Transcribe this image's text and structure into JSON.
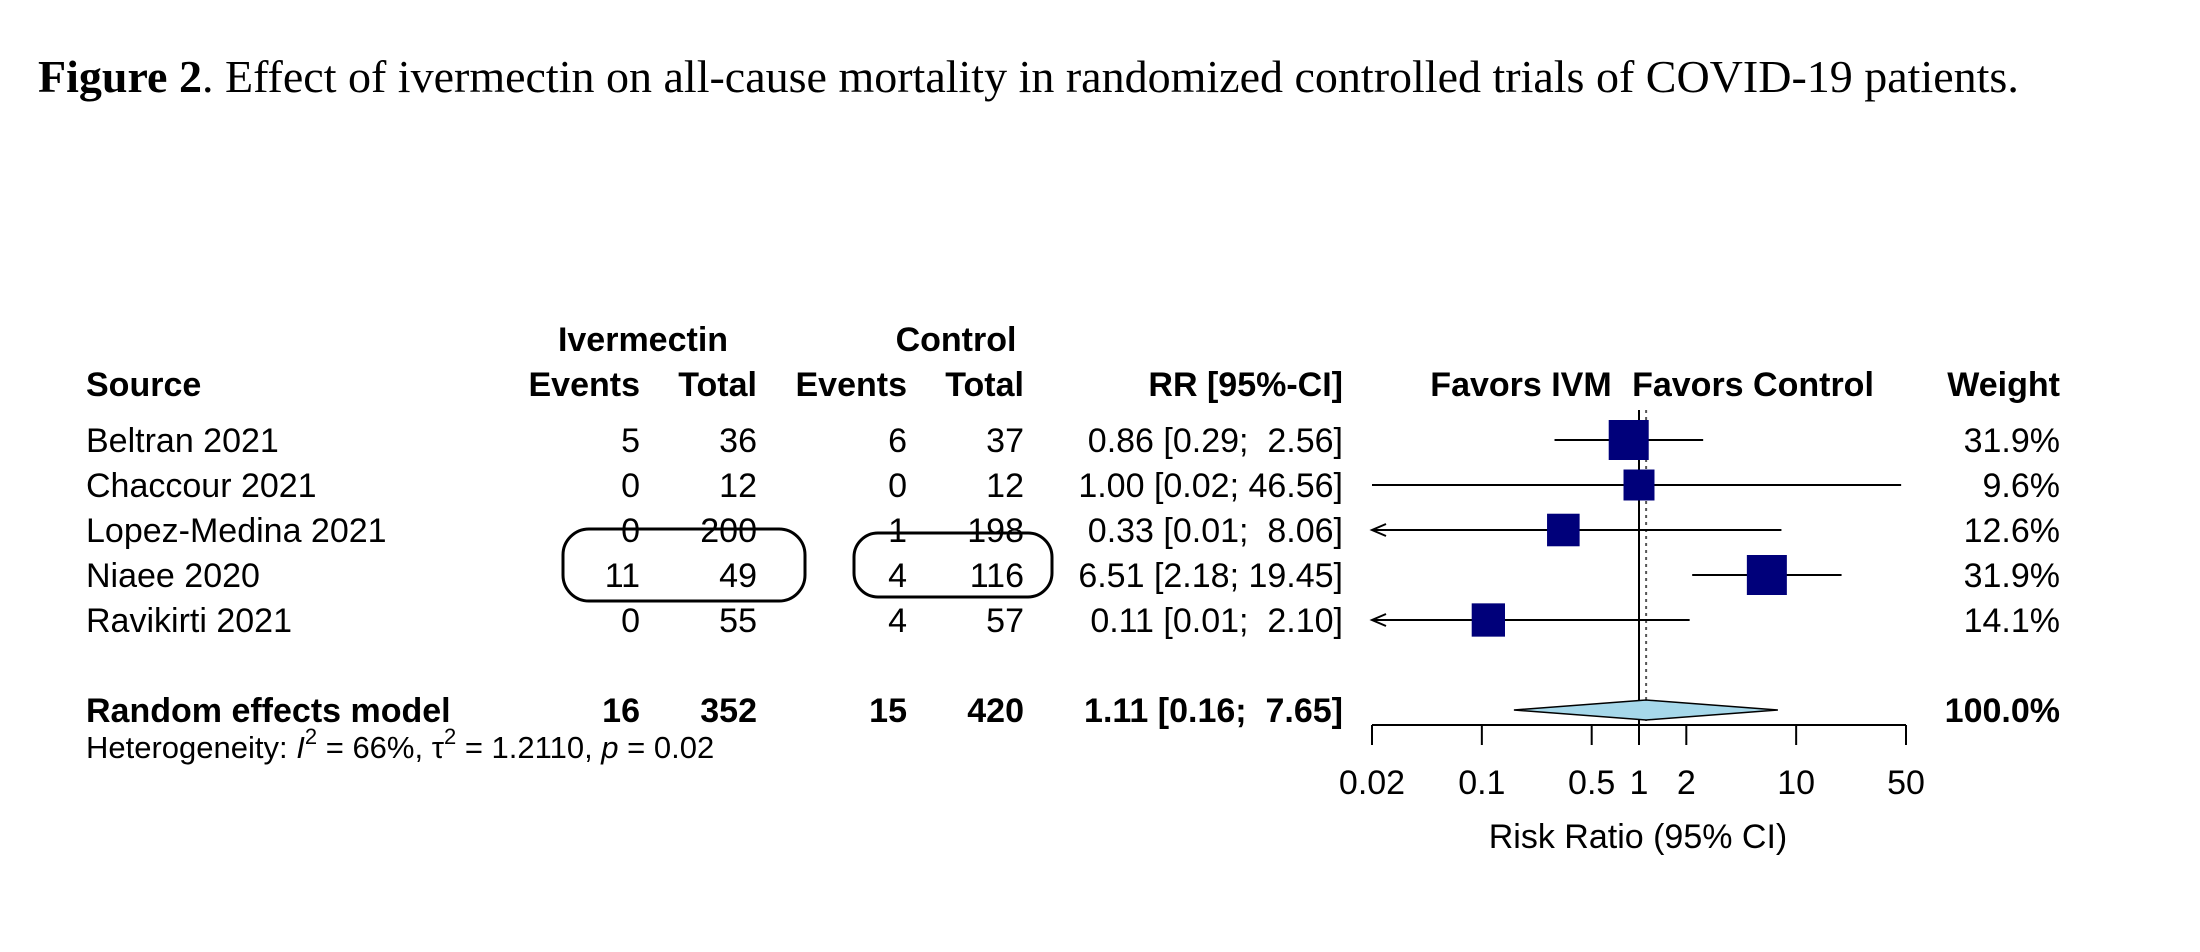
{
  "caption": {
    "label": "Figure 2",
    "text": ". Effect of ivermectin on all-cause mortality in randomized controlled trials of COVID-19 patients."
  },
  "chart_data": {
    "type": "forest",
    "headers": {
      "ivermectin": "Ivermectin",
      "control": "Control",
      "source": "Source",
      "events": "Events",
      "total": "Total",
      "rr": "RR [95%-CI]",
      "favors_ivm": "Favors IVM",
      "favors_control": "Favors Control",
      "weight": "Weight"
    },
    "studies": [
      {
        "source": "Beltran 2021",
        "ivm_events": "5",
        "ivm_total": "36",
        "ctl_events": "6",
        "ctl_total": "37",
        "rr_text": "0.86 [0.29;  2.56]",
        "rr": 0.86,
        "lo": 0.29,
        "hi": 2.56,
        "arrow_lo": false,
        "arrow_hi": false,
        "weight": "31.9%",
        "w": 31.9
      },
      {
        "source": "Chaccour 2021",
        "ivm_events": "0",
        "ivm_total": "12",
        "ctl_events": "0",
        "ctl_total": "12",
        "rr_text": "1.00 [0.02; 46.56]",
        "rr": 1.0,
        "lo": 0.02,
        "hi": 46.56,
        "arrow_lo": false,
        "arrow_hi": false,
        "weight": "9.6%",
        "w": 9.6
      },
      {
        "source": "Lopez-Medina 2021",
        "ivm_events": "0",
        "ivm_total": "200",
        "ctl_events": "1",
        "ctl_total": "198",
        "rr_text": "0.33 [0.01;  8.06]",
        "rr": 0.33,
        "lo": 0.01,
        "hi": 8.06,
        "arrow_lo": true,
        "arrow_hi": false,
        "weight": "12.6%",
        "w": 12.6
      },
      {
        "source": "Niaee 2020",
        "ivm_events": "11",
        "ivm_total": "49",
        "ctl_events": "4",
        "ctl_total": "116",
        "rr_text": "6.51 [2.18; 19.45]",
        "rr": 6.51,
        "lo": 2.18,
        "hi": 19.45,
        "arrow_lo": false,
        "arrow_hi": false,
        "weight": "31.9%",
        "w": 31.9
      },
      {
        "source": "Ravikirti 2021",
        "ivm_events": "0",
        "ivm_total": "55",
        "ctl_events": "4",
        "ctl_total": "57",
        "rr_text": "0.11 [0.01;  2.10]",
        "rr": 0.11,
        "lo": 0.01,
        "hi": 2.1,
        "arrow_lo": true,
        "arrow_hi": false,
        "weight": "14.1%",
        "w": 14.1
      }
    ],
    "pooled": {
      "source": "Random effects model",
      "ivm_events": "16",
      "ivm_total": "352",
      "ctl_events": "15",
      "ctl_total": "420",
      "rr_text": "1.11 [0.16;  7.65]",
      "rr": 1.11,
      "lo": 0.16,
      "hi": 7.65,
      "weight": "100.0%"
    },
    "heterogeneity": {
      "prefix": "Heterogeneity: ",
      "i_symbol": "I",
      "sup": "2",
      "i_value": " = 66%, ",
      "tau_symbol": "τ",
      "tau_value": " = 1.2110, ",
      "p_symbol": "p",
      "p_value": " = 0.02"
    },
    "x_axis": {
      "scale": "log",
      "ticks": [
        0.02,
        0.1,
        0.5,
        1,
        2,
        10,
        50
      ],
      "tick_labels": [
        "0.02",
        "0.1",
        "0.5",
        "1",
        "2",
        "10",
        "50"
      ],
      "label": "Risk Ratio (95% CI)",
      "range": [
        0.02,
        50
      ]
    },
    "colors": {
      "square": "#00007a",
      "diamond": "#a6d8ea",
      "line": "#000000"
    },
    "highlighted_rows": [
      "Niaee 2020"
    ]
  }
}
